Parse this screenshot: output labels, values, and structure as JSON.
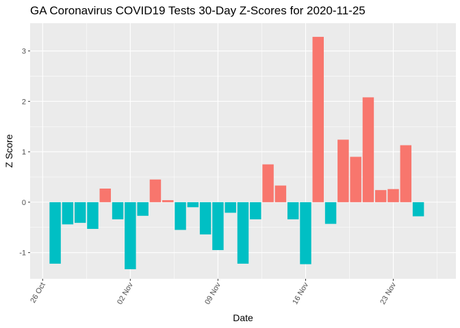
{
  "chart_data": {
    "type": "bar",
    "title": "GA Coronavirus COVID19 Tests 30-Day Z-Scores for 2020-11-25",
    "xlabel": "Date",
    "ylabel": "Z Score",
    "x_tick_labels": [
      "26 Oct",
      "02 Nov",
      "09 Nov",
      "16 Nov",
      "23 Nov"
    ],
    "x_tick_dates": [
      "2020-10-26",
      "2020-11-02",
      "2020-11-09",
      "2020-11-16",
      "2020-11-23"
    ],
    "y_tick_labels": [
      "-1",
      "0",
      "1",
      "2",
      "3"
    ],
    "y_ticks": [
      -1,
      0,
      1,
      2,
      3
    ],
    "ylim": [
      -1.52,
      3.55
    ],
    "xlim": [
      "2020-10-25",
      "2020-11-28"
    ],
    "grid": true,
    "legend": "none",
    "colors": {
      "positive": "#F8766D",
      "negative": "#00BFC4",
      "panel": "#EBEBEB",
      "grid": "#FFFFFF"
    },
    "categories": [
      "2020-10-27",
      "2020-10-28",
      "2020-10-29",
      "2020-10-30",
      "2020-10-31",
      "2020-11-01",
      "2020-11-02",
      "2020-11-03",
      "2020-11-04",
      "2020-11-05",
      "2020-11-06",
      "2020-11-07",
      "2020-11-08",
      "2020-11-09",
      "2020-11-10",
      "2020-11-11",
      "2020-11-12",
      "2020-11-13",
      "2020-11-14",
      "2020-11-15",
      "2020-11-16",
      "2020-11-17",
      "2020-11-18",
      "2020-11-19",
      "2020-11-20",
      "2020-11-21",
      "2020-11-22",
      "2020-11-23",
      "2020-11-24",
      "2020-11-25"
    ],
    "values": [
      -1.22,
      -0.44,
      -0.41,
      -0.53,
      0.27,
      -0.34,
      -1.33,
      -0.27,
      0.45,
      0.04,
      -0.55,
      -0.1,
      -0.64,
      -0.95,
      -0.21,
      -1.22,
      -0.34,
      0.75,
      0.33,
      -0.34,
      -1.23,
      3.28,
      -0.43,
      1.24,
      0.9,
      2.08,
      0.24,
      0.26,
      1.13,
      -0.28
    ]
  }
}
